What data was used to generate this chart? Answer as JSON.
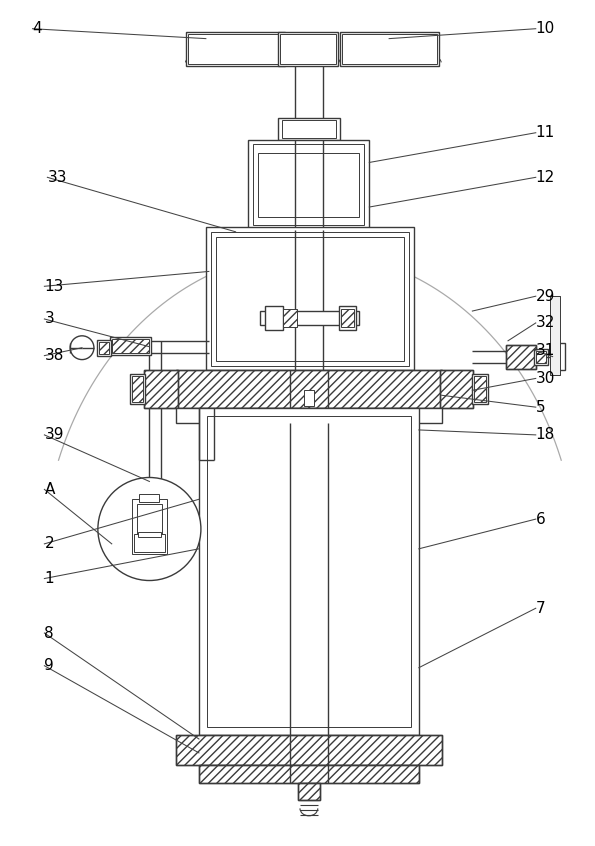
{
  "bg_color": "#ffffff",
  "line_color": "#3a3a3a",
  "label_color": "#000000",
  "fig_width": 5.95,
  "fig_height": 8.46,
  "dpi": 100
}
